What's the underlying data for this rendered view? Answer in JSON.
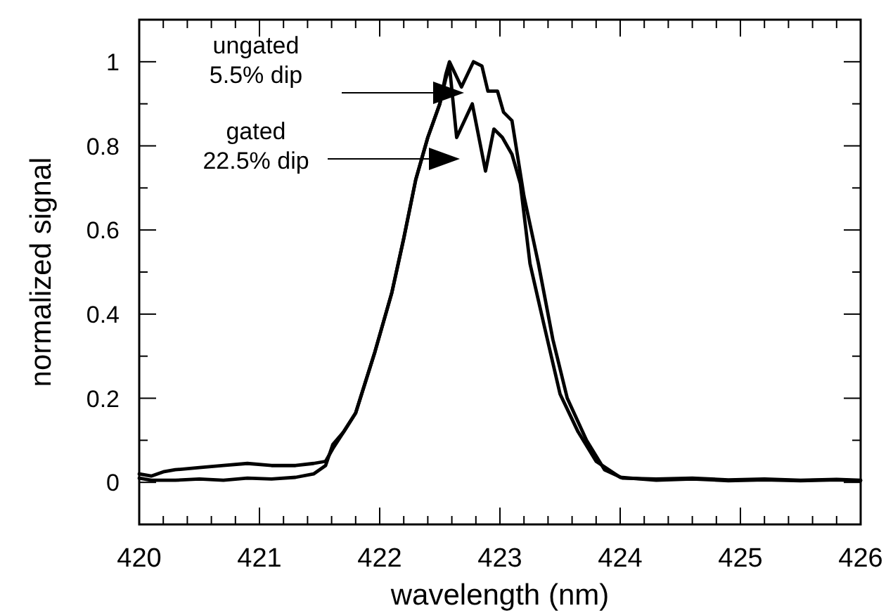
{
  "chart_data": {
    "type": "line",
    "xlabel": "wavelength (nm)",
    "ylabel": "normalized signal",
    "xlim": [
      420,
      426
    ],
    "ylim": [
      -0.1,
      1.1
    ],
    "xticks": [
      420,
      {
        "value": 420.2,
        "label": null
      },
      {
        "value": 420.4,
        "label": null
      },
      {
        "value": 420.6,
        "label": null
      },
      {
        "value": 420.8,
        "label": null
      },
      421,
      {
        "value": 421.2,
        "label": null
      },
      {
        "value": 421.4,
        "label": null
      },
      {
        "value": 421.6,
        "label": null
      },
      {
        "value": 421.8,
        "label": null
      },
      422,
      {
        "value": 422.2,
        "label": null
      },
      {
        "value": 422.4,
        "label": null
      },
      {
        "value": 422.6,
        "label": null
      },
      {
        "value": 422.8,
        "label": null
      },
      423,
      {
        "value": 423.2,
        "label": null
      },
      {
        "value": 423.4,
        "label": null
      },
      {
        "value": 423.6,
        "label": null
      },
      {
        "value": 423.8,
        "label": null
      },
      424,
      {
        "value": 424.2,
        "label": null
      },
      {
        "value": 424.4,
        "label": null
      },
      {
        "value": 424.6,
        "label": null
      },
      {
        "value": 424.8,
        "label": null
      },
      425,
      {
        "value": 425.2,
        "label": null
      },
      {
        "value": 425.4,
        "label": null
      },
      {
        "value": 425.6,
        "label": null
      },
      {
        "value": 425.8,
        "label": null
      },
      426
    ],
    "yticks": [
      {
        "value": -0.1,
        "label": null
      },
      0,
      {
        "value": 0.1,
        "label": null
      },
      0.2,
      {
        "value": 0.3,
        "label": null
      },
      0.4,
      {
        "value": 0.5,
        "label": null
      },
      0.6,
      {
        "value": 0.7,
        "label": null
      },
      0.8,
      {
        "value": 0.9,
        "label": null
      },
      1,
      {
        "value": 1.1,
        "label": null
      }
    ],
    "grid": false,
    "marker": "none",
    "line_style": "solid",
    "series": [
      {
        "color": "#000000",
        "x": [
          420,
          420.1,
          420.2,
          420.3,
          420.5,
          420.7,
          420.9,
          421.1,
          421.3,
          421.45,
          421.55,
          421.61,
          421.7,
          421.8,
          421.96,
          422.1,
          422.2,
          422.3,
          422.4,
          422.45,
          422.5,
          422.55,
          422.58,
          422.68,
          422.78,
          422.85,
          422.9,
          422.98,
          423.03,
          423.1,
          423.2,
          423.32,
          423.44,
          423.56,
          423.72,
          423.87,
          424.02,
          424.3,
          424.6,
          424.9,
          425.2,
          425.5,
          425.8,
          426
        ],
        "values": [
          0.02,
          0.015,
          0.025,
          0.03,
          0.035,
          0.04,
          0.045,
          0.04,
          0.04,
          0.045,
          0.05,
          0.08,
          0.12,
          0.165,
          0.31,
          0.45,
          0.58,
          0.72,
          0.82,
          0.86,
          0.9,
          0.97,
          1.0,
          0.94,
          1.0,
          0.99,
          0.93,
          0.93,
          0.88,
          0.86,
          0.68,
          0.52,
          0.34,
          0.2,
          0.1,
          0.03,
          0.01,
          0.008,
          0.01,
          0.006,
          0.008,
          0.005,
          0.007,
          0.005
        ]
      },
      {
        "color": "#000000",
        "x": [
          420,
          420.1,
          420.3,
          420.5,
          420.7,
          420.9,
          421.1,
          421.3,
          421.45,
          421.55,
          421.61,
          421.7,
          421.8,
          421.96,
          422.1,
          422.2,
          422.3,
          422.4,
          422.45,
          422.5,
          422.55,
          422.58,
          422.64,
          422.77,
          422.88,
          422.95,
          423.02,
          423.1,
          423.17,
          423.25,
          423.37,
          423.5,
          423.65,
          423.8,
          424.0,
          424.3,
          424.6,
          424.9,
          425.2,
          425.5,
          425.8,
          426
        ],
        "values": [
          0.01,
          0.005,
          0.005,
          0.008,
          0.005,
          0.01,
          0.008,
          0.012,
          0.02,
          0.04,
          0.09,
          0.12,
          0.165,
          0.31,
          0.45,
          0.58,
          0.72,
          0.82,
          0.86,
          0.9,
          0.96,
          0.99,
          0.82,
          0.9,
          0.74,
          0.84,
          0.82,
          0.78,
          0.71,
          0.52,
          0.37,
          0.21,
          0.12,
          0.05,
          0.012,
          0.005,
          0.008,
          0.004,
          0.006,
          0.004,
          0.006,
          0.004
        ]
      }
    ],
    "annotations": [
      "ungated\n5.5% dip",
      "gated\n22.5% dip"
    ]
  }
}
